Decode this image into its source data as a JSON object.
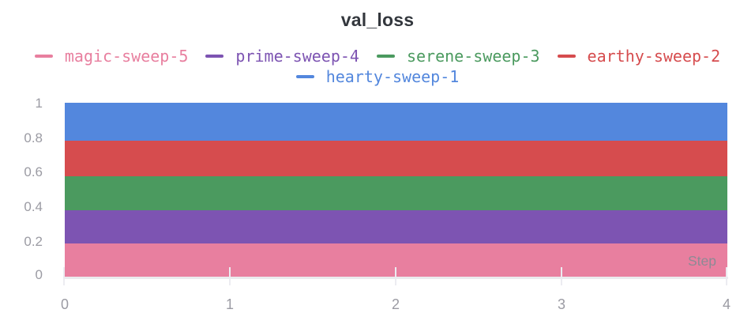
{
  "title": "val_loss",
  "series": [
    {
      "name": "magic-sweep-5",
      "color": "#e87f9f"
    },
    {
      "name": "prime-sweep-4",
      "color": "#7d54b2"
    },
    {
      "name": "serene-sweep-3",
      "color": "#4b9a5f"
    },
    {
      "name": "earthy-sweep-2",
      "color": "#d64c4e"
    },
    {
      "name": "hearty-sweep-1",
      "color": "#5387dd"
    }
  ],
  "axes": {
    "y_ticks": [
      "1",
      "0.8",
      "0.6",
      "0.4",
      "0.2",
      "0"
    ],
    "x_ticks": [
      "0",
      "1",
      "2",
      "3",
      "4"
    ],
    "x_axis_label": "Step"
  },
  "chart_data": {
    "type": "area",
    "stacked": true,
    "title": "val_loss",
    "xlabel": "Step",
    "ylabel": "",
    "x": [
      0,
      1,
      2,
      3,
      4
    ],
    "xlim": [
      0,
      4
    ],
    "ylim": [
      0,
      1
    ],
    "y_ticks": [
      0,
      0.2,
      0.4,
      0.6,
      0.8,
      1
    ],
    "grid": false,
    "legend_position": "top",
    "series": [
      {
        "name": "magic-sweep-5",
        "color": "#e87f9f",
        "values": [
          0.2,
          0.2,
          0.2,
          0.2,
          0.2
        ]
      },
      {
        "name": "prime-sweep-4",
        "color": "#7d54b2",
        "values": [
          0.2,
          0.2,
          0.2,
          0.2,
          0.2
        ]
      },
      {
        "name": "serene-sweep-3",
        "color": "#4b9a5f",
        "values": [
          0.2,
          0.2,
          0.2,
          0.2,
          0.2
        ]
      },
      {
        "name": "earthy-sweep-2",
        "color": "#d64c4e",
        "values": [
          0.2,
          0.2,
          0.2,
          0.2,
          0.2
        ]
      },
      {
        "name": "hearty-sweep-1",
        "color": "#5387dd",
        "values": [
          0.2,
          0.2,
          0.2,
          0.2,
          0.2
        ]
      }
    ],
    "stack_order_bottom_to_top": [
      "magic-sweep-5",
      "prime-sweep-4",
      "serene-sweep-3",
      "earthy-sweep-2",
      "hearty-sweep-1"
    ]
  }
}
